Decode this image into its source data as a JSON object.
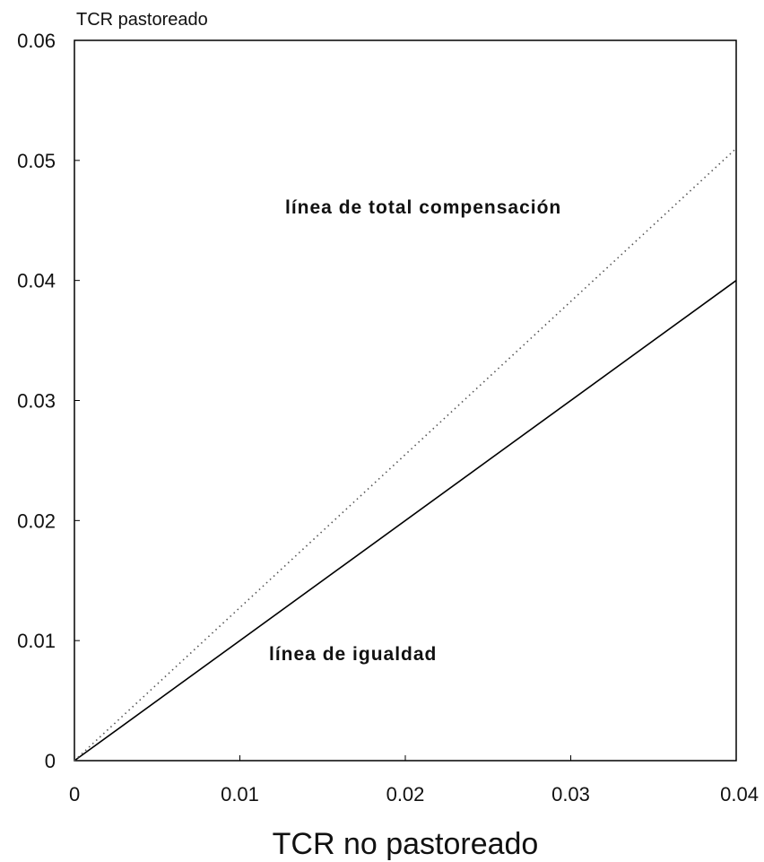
{
  "chart_data": {
    "type": "line",
    "title": "",
    "xlabel": "TCR no pastoreado",
    "ylabel": "TCR pastoreado",
    "xlim": [
      0,
      0.04
    ],
    "ylim": [
      0,
      0.06
    ],
    "grid": false,
    "x_ticks": [
      {
        "value": 0,
        "label": "0"
      },
      {
        "value": 0.01,
        "label": "0.01"
      },
      {
        "value": 0.02,
        "label": "0.02"
      },
      {
        "value": 0.03,
        "label": "0.03"
      },
      {
        "value": 0.04,
        "label": "0.04"
      }
    ],
    "y_ticks": [
      {
        "value": 0,
        "label": "0"
      },
      {
        "value": 0.01,
        "label": "0.01"
      },
      {
        "value": 0.02,
        "label": "0.02"
      },
      {
        "value": 0.03,
        "label": "0.03"
      },
      {
        "value": 0.04,
        "label": "0.04"
      },
      {
        "value": 0.05,
        "label": "0.05"
      },
      {
        "value": 0.06,
        "label": "0.06"
      }
    ],
    "series": [
      {
        "name": "línea de igualdad",
        "style": "solid",
        "color": "#000000",
        "x": [
          0,
          0.04
        ],
        "y": [
          0,
          0.04
        ]
      },
      {
        "name": "línea de total compensación",
        "style": "dotted",
        "color": "#555555",
        "x": [
          0,
          0.04
        ],
        "y": [
          0,
          0.051
        ]
      }
    ],
    "annotations": {
      "total_compensacion": "línea de total compensación",
      "igualdad": "línea de igualdad"
    }
  }
}
